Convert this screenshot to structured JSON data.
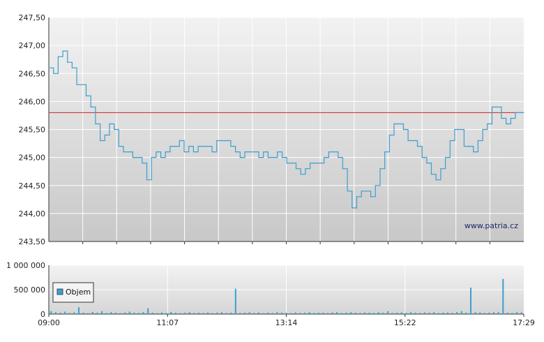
{
  "chart_data": [
    {
      "type": "line",
      "title": "",
      "xlabel": "",
      "ylabel": "",
      "ylim": [
        243.5,
        247.5
      ],
      "yticks": [
        "243,50",
        "244,00",
        "244,50",
        "245,00",
        "245,50",
        "246,00",
        "246,50",
        "247,00",
        "247,50"
      ],
      "ytick_values": [
        243.5,
        244.0,
        244.5,
        245.0,
        245.5,
        246.0,
        246.5,
        247.0,
        247.5
      ],
      "grid": true,
      "reference_line": 245.8,
      "watermark": "www.patria.cz",
      "series": [
        {
          "x": [
            "09:00",
            "09:05",
            "09:10",
            "09:15",
            "09:20",
            "09:25",
            "09:30",
            "09:35",
            "09:40",
            "09:45",
            "09:50",
            "09:55",
            "10:00",
            "10:05",
            "10:10",
            "10:15",
            "10:20",
            "10:25",
            "10:30",
            "10:35",
            "10:40",
            "10:45",
            "10:50",
            "10:55",
            "11:00",
            "11:05",
            "11:10",
            "11:15",
            "11:20",
            "11:25",
            "11:30",
            "11:35",
            "11:40",
            "11:45",
            "11:50",
            "11:55",
            "12:00",
            "12:05",
            "12:10",
            "12:15",
            "12:20",
            "12:25",
            "12:30",
            "12:35",
            "12:40",
            "12:45",
            "12:50",
            "12:55",
            "13:00",
            "13:05",
            "13:10",
            "13:15",
            "13:20",
            "13:25",
            "13:30",
            "13:35",
            "13:40",
            "13:45",
            "13:50",
            "13:55",
            "14:00",
            "14:05",
            "14:10",
            "14:15",
            "14:20",
            "14:25",
            "14:30",
            "14:35",
            "14:40",
            "14:45",
            "14:50",
            "14:55",
            "15:00",
            "15:05",
            "15:10",
            "15:15",
            "15:20",
            "15:25",
            "15:30",
            "15:35",
            "15:40",
            "15:45",
            "15:50",
            "15:55",
            "16:00",
            "16:05",
            "16:10",
            "16:15",
            "16:20",
            "16:25",
            "16:30",
            "16:35",
            "16:40",
            "16:45",
            "16:50",
            "16:55",
            "17:00",
            "17:05",
            "17:10",
            "17:15",
            "17:20",
            "17:25",
            "17:29"
          ],
          "values": [
            246.6,
            246.5,
            246.8,
            246.9,
            246.7,
            246.6,
            246.3,
            246.3,
            246.1,
            245.9,
            245.6,
            245.3,
            245.4,
            245.6,
            245.5,
            245.2,
            245.1,
            245.1,
            245.0,
            245.0,
            244.9,
            244.6,
            245.0,
            245.1,
            245.0,
            245.1,
            245.2,
            245.2,
            245.3,
            245.1,
            245.2,
            245.1,
            245.2,
            245.2,
            245.2,
            245.1,
            245.3,
            245.3,
            245.3,
            245.2,
            245.1,
            245.0,
            245.1,
            245.1,
            245.1,
            245.0,
            245.1,
            245.0,
            245.0,
            245.1,
            245.0,
            244.9,
            244.9,
            244.8,
            244.7,
            244.8,
            244.9,
            244.9,
            244.9,
            245.0,
            245.1,
            245.1,
            245.0,
            244.8,
            244.4,
            244.1,
            244.3,
            244.4,
            244.4,
            244.3,
            244.5,
            244.8,
            245.1,
            245.4,
            245.6,
            245.6,
            245.5,
            245.3,
            245.3,
            245.2,
            245.0,
            244.9,
            244.7,
            244.6,
            244.8,
            245.0,
            245.3,
            245.5,
            245.5,
            245.2,
            245.2,
            245.1,
            245.3,
            245.5,
            245.6,
            245.9,
            245.9,
            245.7,
            245.6,
            245.7,
            245.8,
            245.8,
            245.8
          ]
        }
      ]
    },
    {
      "type": "bar",
      "title": "",
      "xlabel": "",
      "ylabel": "",
      "ylim": [
        0,
        1000000
      ],
      "yticks": [
        "0",
        "500 000",
        "1 000 000"
      ],
      "ytick_values": [
        0,
        500000,
        1000000
      ],
      "xticks": [
        "09:00",
        "11:07",
        "13:14",
        "15:22",
        "17:29"
      ],
      "legend": "Objem",
      "legend_position": "left",
      "series": [
        {
          "name": "Objem",
          "x_start": "09:00",
          "x_end": "17:29",
          "values": [
            60000,
            40000,
            30000,
            50000,
            25000,
            35000,
            140000,
            30000,
            20000,
            45000,
            30000,
            60000,
            25000,
            40000,
            30000,
            20000,
            35000,
            50000,
            30000,
            25000,
            40000,
            120000,
            30000,
            20000,
            35000,
            25000,
            45000,
            30000,
            20000,
            30000,
            40000,
            25000,
            30000,
            25000,
            35000,
            20000,
            30000,
            40000,
            25000,
            30000,
            520000,
            25000,
            30000,
            40000,
            25000,
            35000,
            20000,
            30000,
            25000,
            40000,
            30000,
            25000,
            20000,
            35000,
            25000,
            30000,
            40000,
            25000,
            30000,
            30000,
            25000,
            35000,
            40000,
            25000,
            30000,
            40000,
            30000,
            25000,
            35000,
            30000,
            25000,
            40000,
            30000,
            60000,
            25000,
            30000,
            35000,
            25000,
            40000,
            30000,
            25000,
            35000,
            30000,
            40000,
            25000,
            30000,
            35000,
            25000,
            40000,
            60000,
            30000,
            540000,
            40000,
            35000,
            25000,
            30000,
            40000,
            40000,
            720000,
            30000,
            25000,
            40000,
            35000
          ]
        }
      ]
    }
  ]
}
